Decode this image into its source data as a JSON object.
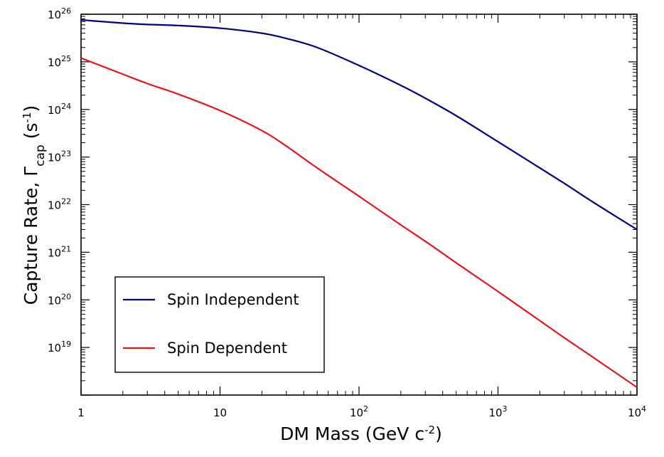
{
  "chart_data": {
    "type": "line",
    "xlabel": "DM Mass (GeV c^-2)",
    "ylabel": "Capture Rate, Γcap (s^-1)",
    "x_scale": "log",
    "y_scale": "log",
    "xlim": [
      1,
      10000
    ],
    "ylim": [
      1e+18,
      1e+26
    ],
    "grid": false,
    "legend_position": "bottom-left",
    "x_tick_labels": [
      {
        "value": 1,
        "base": "1",
        "exp": ""
      },
      {
        "value": 10,
        "base": "10",
        "exp": ""
      },
      {
        "value": 100,
        "base": "10",
        "exp": "2"
      },
      {
        "value": 1000,
        "base": "10",
        "exp": "3"
      },
      {
        "value": 10000,
        "base": "10",
        "exp": "4"
      }
    ],
    "y_tick_labels": [
      {
        "value": 1e+19,
        "base": "10",
        "exp": "19"
      },
      {
        "value": 1e+20,
        "base": "10",
        "exp": "20"
      },
      {
        "value": 1e+21,
        "base": "10",
        "exp": "21"
      },
      {
        "value": 1e+22,
        "base": "10",
        "exp": "22"
      },
      {
        "value": 1e+23,
        "base": "10",
        "exp": "23"
      },
      {
        "value": 1e+24,
        "base": "10",
        "exp": "24"
      },
      {
        "value": 1e+25,
        "base": "10",
        "exp": "25"
      },
      {
        "value": 1e+26,
        "base": "10",
        "exp": "26"
      }
    ],
    "series": [
      {
        "name": "Spin Independent",
        "color": "#000080",
        "x": [
          1,
          2,
          3,
          5,
          10,
          20,
          30,
          50,
          100,
          200,
          300,
          500,
          1000,
          2000,
          3000,
          5000,
          10000
        ],
        "y": [
          7.6e+25,
          6.5e+25,
          6.1e+25,
          5.8e+25,
          5.1e+25,
          4e+25,
          3.1e+25,
          2e+25,
          8.4e+24,
          3.2e+24,
          1.72e+24,
          7.4e+23,
          2.1e+23,
          5.9e+22,
          2.8e+22,
          1.06e+22,
          3e+21
        ]
      },
      {
        "name": "Spin Dependent",
        "color": "#e8141c",
        "x": [
          1,
          2,
          3,
          5,
          10,
          20,
          30,
          50,
          100,
          200,
          300,
          500,
          1000,
          2000,
          3000,
          5000,
          10000
        ],
        "y": [
          1.2e+25,
          5.5e+24,
          3.5e+24,
          2.1e+24,
          9.5e+23,
          3.6e+23,
          1.7e+23,
          5.9e+22,
          1.5e+22,
          3.75e+21,
          1.7e+21,
          6e+20,
          1.5e+20,
          3.65e+19,
          1.6e+19,
          5.8e+18,
          1.45e+18
        ]
      }
    ]
  }
}
